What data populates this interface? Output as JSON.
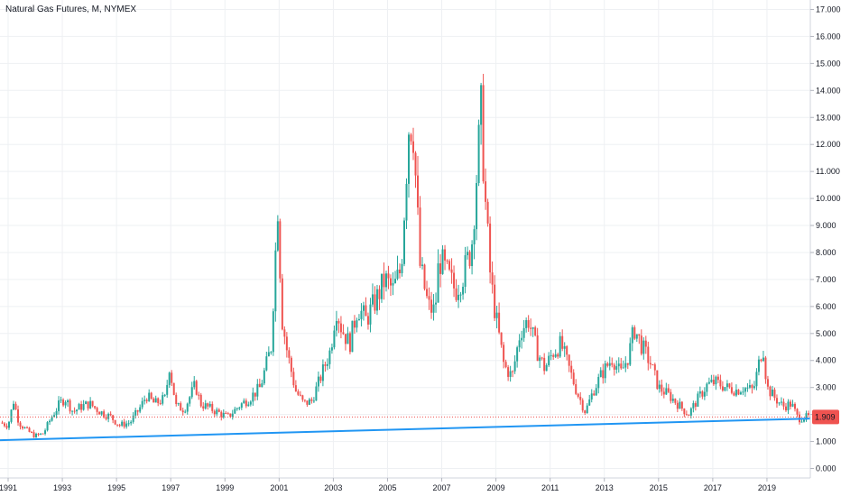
{
  "chart_data": {
    "type": "candlestick",
    "title": "Natural Gas Futures, M, NYMEX",
    "ylim": [
      -0.35,
      17.35
    ],
    "xlim": [
      1990.7,
      2020.6
    ],
    "y_ticks": [
      "0.000",
      "1.000",
      "2.000",
      "3.000",
      "4.000",
      "5.000",
      "6.000",
      "7.000",
      "8.000",
      "9.000",
      "10.000",
      "11.000",
      "12.000",
      "13.000",
      "14.000",
      "15.000",
      "16.000",
      "17.000"
    ],
    "x_ticks": [
      "1991",
      "1993",
      "1995",
      "1997",
      "1999",
      "2001",
      "2003",
      "2005",
      "2007",
      "2009",
      "2011",
      "2013",
      "2015",
      "2017",
      "2019"
    ],
    "grid": true,
    "last_price_label": "1.909",
    "last_price": 1.909,
    "colors": {
      "up": "#26a69a",
      "down": "#ef5350",
      "trendline": "#2196f3",
      "grid": "#eef0f3",
      "last_price_line": "#ef5350"
    },
    "trendline": {
      "start": {
        "x": 1990.7,
        "y": 1.05
      },
      "end": {
        "x": 2020.6,
        "y": 1.85
      }
    },
    "series": [
      {
        "name": "price",
        "anchors": [
          [
            1990.7,
            1.7
          ],
          [
            1991.0,
            1.6
          ],
          [
            1991.2,
            2.5
          ],
          [
            1991.4,
            1.7
          ],
          [
            1991.7,
            1.4
          ],
          [
            1992.0,
            1.2
          ],
          [
            1992.3,
            1.3
          ],
          [
            1992.6,
            1.9
          ],
          [
            1992.9,
            2.4
          ],
          [
            1993.1,
            2.6
          ],
          [
            1993.4,
            2.1
          ],
          [
            1993.7,
            2.3
          ],
          [
            1994.0,
            2.4
          ],
          [
            1994.4,
            2.1
          ],
          [
            1994.8,
            1.9
          ],
          [
            1995.1,
            1.6
          ],
          [
            1995.5,
            1.7
          ],
          [
            1995.9,
            2.3
          ],
          [
            1996.1,
            2.7
          ],
          [
            1996.4,
            2.4
          ],
          [
            1996.8,
            2.6
          ],
          [
            1996.95,
            3.8
          ],
          [
            1997.2,
            2.3
          ],
          [
            1997.5,
            2.2
          ],
          [
            1997.9,
            3.1
          ],
          [
            1998.1,
            2.4
          ],
          [
            1998.5,
            2.2
          ],
          [
            1998.9,
            2.0
          ],
          [
            1999.1,
            1.9
          ],
          [
            1999.5,
            2.3
          ],
          [
            1999.9,
            2.6
          ],
          [
            2000.3,
            3.0
          ],
          [
            2000.7,
            4.5
          ],
          [
            2000.95,
            9.8
          ],
          [
            2001.1,
            5.6
          ],
          [
            2001.3,
            4.3
          ],
          [
            2001.6,
            2.9
          ],
          [
            2001.9,
            2.4
          ],
          [
            2002.2,
            2.5
          ],
          [
            2002.5,
            3.3
          ],
          [
            2002.9,
            4.4
          ],
          [
            2003.1,
            6.0
          ],
          [
            2003.3,
            5.2
          ],
          [
            2003.6,
            4.6
          ],
          [
            2003.9,
            6.0
          ],
          [
            2004.2,
            5.5
          ],
          [
            2004.6,
            6.3
          ],
          [
            2004.9,
            7.0
          ],
          [
            2005.2,
            6.6
          ],
          [
            2005.5,
            7.4
          ],
          [
            2005.8,
            13.0
          ],
          [
            2005.95,
            12.5
          ],
          [
            2006.2,
            7.5
          ],
          [
            2006.5,
            6.0
          ],
          [
            2006.75,
            5.8
          ],
          [
            2006.9,
            7.8
          ],
          [
            2007.2,
            7.2
          ],
          [
            2007.5,
            6.6
          ],
          [
            2007.8,
            7.2
          ],
          [
            2008.1,
            8.2
          ],
          [
            2008.45,
            13.2
          ],
          [
            2008.6,
            10.0
          ],
          [
            2008.8,
            7.0
          ],
          [
            2009.0,
            5.6
          ],
          [
            2009.3,
            3.8
          ],
          [
            2009.6,
            3.4
          ],
          [
            2009.9,
            5.1
          ],
          [
            2010.2,
            5.5
          ],
          [
            2010.5,
            4.4
          ],
          [
            2010.8,
            3.7
          ],
          [
            2011.1,
            4.3
          ],
          [
            2011.4,
            4.6
          ],
          [
            2011.7,
            3.7
          ],
          [
            2012.0,
            2.8
          ],
          [
            2012.3,
            2.1
          ],
          [
            2012.6,
            2.9
          ],
          [
            2012.9,
            3.5
          ],
          [
            2013.3,
            4.1
          ],
          [
            2013.6,
            3.5
          ],
          [
            2013.9,
            4.2
          ],
          [
            2014.1,
            5.2
          ],
          [
            2014.4,
            4.5
          ],
          [
            2014.7,
            3.9
          ],
          [
            2015.0,
            3.0
          ],
          [
            2015.4,
            2.7
          ],
          [
            2015.8,
            2.3
          ],
          [
            2016.1,
            2.0
          ],
          [
            2016.4,
            2.5
          ],
          [
            2016.8,
            3.1
          ],
          [
            2017.1,
            3.2
          ],
          [
            2017.5,
            3.0
          ],
          [
            2017.9,
            2.9
          ],
          [
            2018.1,
            3.0
          ],
          [
            2018.5,
            2.9
          ],
          [
            2018.85,
            4.6
          ],
          [
            2019.0,
            3.0
          ],
          [
            2019.3,
            2.6
          ],
          [
            2019.6,
            2.3
          ],
          [
            2019.9,
            2.4
          ],
          [
            2020.15,
            1.85
          ],
          [
            2020.5,
            1.91
          ]
        ]
      }
    ]
  }
}
